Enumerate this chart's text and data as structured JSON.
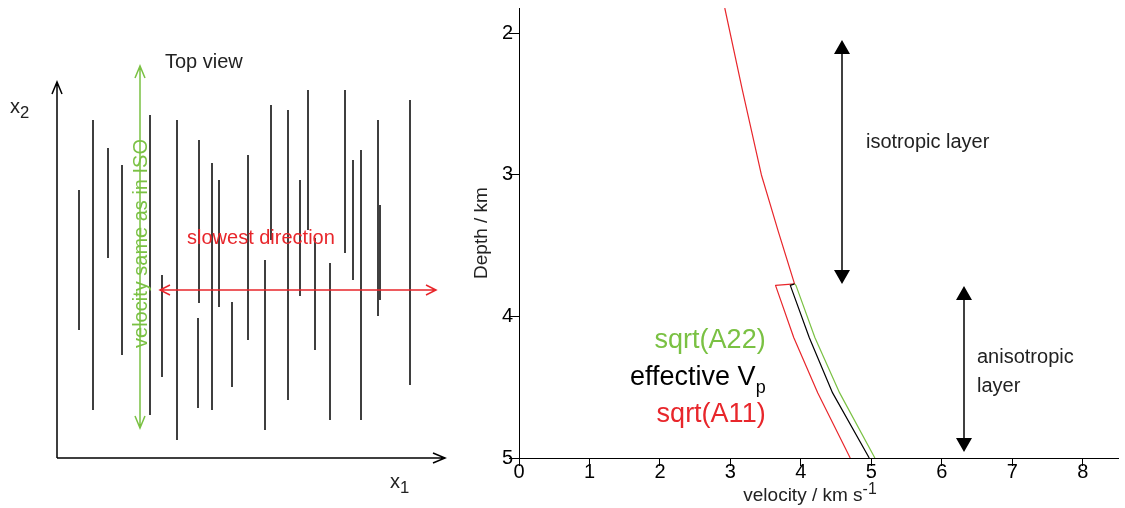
{
  "chart_data": {
    "type": "line",
    "xlabel": "velocity / km s$^{-1}$",
    "ylabel": "Depth / km",
    "series": [
      {
        "name": "sqrt(A22)",
        "color": "#7ac143",
        "x": [
          3.91,
          3.93,
          4.2,
          4.55,
          5.05
        ],
        "values": [
          3.77,
          3.78,
          4.15,
          4.54,
          5
        ]
      },
      {
        "name": "effective V$_{p}$",
        "color": "#000000",
        "x": [
          3.91,
          3.85,
          4.12,
          4.45,
          4.97
        ],
        "values": [
          3.77,
          3.78,
          4.15,
          4.54,
          5
        ]
      },
      {
        "name": "sqrt(A11)",
        "color": "#e8262b",
        "x": [
          2.92,
          3.17,
          3.44,
          3.68,
          3.91,
          3.64,
          3.9,
          4.24,
          4.7
        ],
        "values": [
          1.82,
          2.4,
          3,
          3.4,
          3.77,
          3.78,
          4.15,
          4.54,
          5
        ]
      }
    ],
    "xlim": [
      0,
      8.5
    ],
    "xticks": [
      0,
      1,
      2,
      3,
      4,
      5,
      6,
      7,
      8
    ],
    "ylim": [
      5,
      1.82
    ],
    "yticks": [
      2,
      3,
      4,
      5
    ],
    "grid": false,
    "legend": false,
    "marker": "none",
    "line_style": "solid",
    "annotations": [
      "isotropic layer",
      "anisotropic layer",
      "Top view",
      "slowest direction",
      "velocity same as in ISO",
      "x$_{2}$",
      "x$_{1}$"
    ]
  }
}
